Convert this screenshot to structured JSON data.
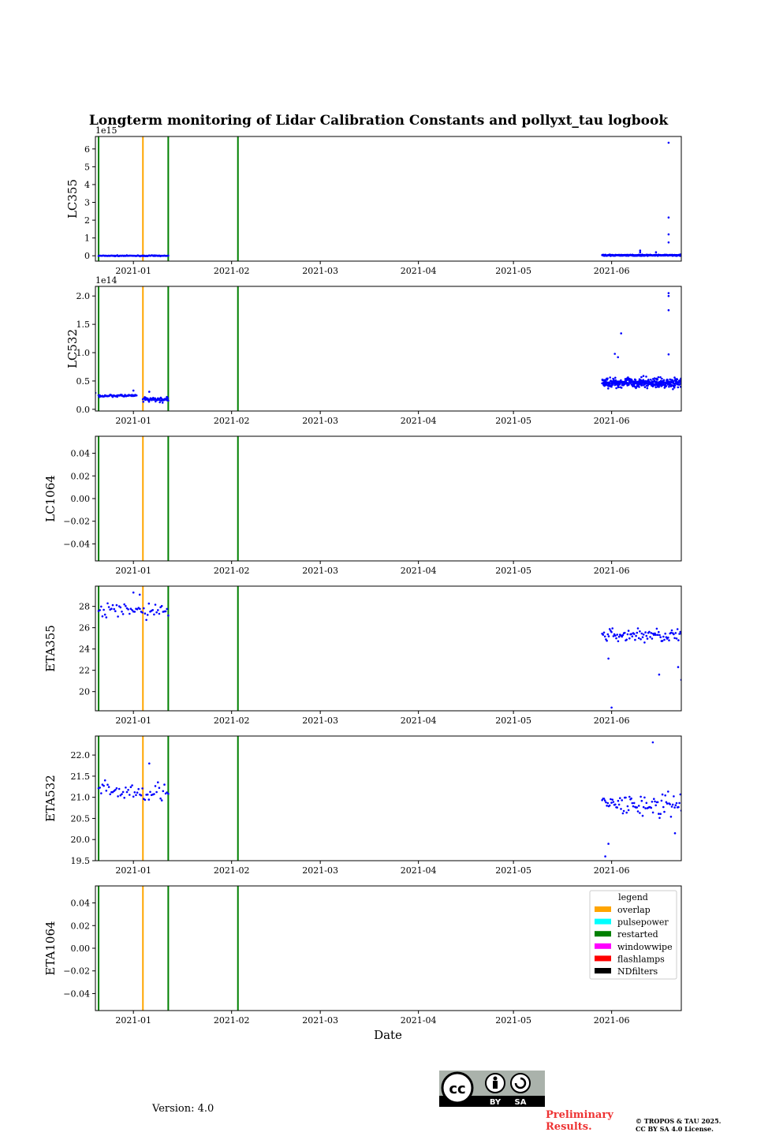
{
  "colors": {
    "data": "#0000ff",
    "overlap": "#ffa500",
    "pulsepower": "#00ffff",
    "restarted": "#008000",
    "windowwipe": "#ff00ff",
    "flashlamps": "#ff0000",
    "NDfilters": "#000000"
  },
  "chart_data": {
    "type": "scatter",
    "title": "Longterm monitoring of Lidar Calibration Constants and pollyxt_tau logbook",
    "xlabel": "Date",
    "xlim": [
      "2020-12-20",
      "2021-06-23"
    ],
    "xticks": [
      "2021-01",
      "2021-02",
      "2021-03",
      "2021-04",
      "2021-05",
      "2021-06"
    ],
    "events": [
      {
        "type": "restarted",
        "date": "2020-12-21"
      },
      {
        "type": "overlap",
        "date": "2021-01-04"
      },
      {
        "type": "restarted",
        "date": "2021-01-12"
      },
      {
        "type": "restarted",
        "date": "2021-02-03"
      }
    ],
    "legend": {
      "title": "legend",
      "position": "top-right",
      "entries": [
        "overlap",
        "pulsepower",
        "restarted",
        "windowwipe",
        "flashlamps",
        "NDfilters"
      ]
    },
    "panels": [
      {
        "ylabel": "LC355",
        "offset": "1e15",
        "ylim": [
          -0.3,
          6.7
        ],
        "yticks": [
          0,
          1,
          2,
          3,
          4,
          5,
          6
        ],
        "ytick_labels": [
          "0",
          "1",
          "2",
          "3",
          "4",
          "5",
          "6"
        ],
        "series": [
          {
            "name": "LC355 early",
            "start": "2020-12-21",
            "end": "2021-01-12",
            "n": 90,
            "base": 0.0,
            "noise": 0.02
          },
          {
            "name": "LC355 late",
            "start": "2021-05-29",
            "end": "2021-06-23",
            "n": 260,
            "base": 0.03,
            "noise": 0.03
          }
        ],
        "outliers": [
          [
            "2021-06-10",
            0.3
          ],
          [
            "2021-06-10",
            0.2
          ],
          [
            "2021-06-15",
            0.2
          ],
          [
            "2021-06-19",
            6.35
          ],
          [
            "2021-06-19",
            2.15
          ],
          [
            "2021-06-19",
            1.2
          ],
          [
            "2021-06-19",
            0.75
          ]
        ]
      },
      {
        "ylabel": "LC532",
        "offset": "1e14",
        "ylim": [
          -0.03,
          2.17
        ],
        "yticks": [
          0,
          0.5,
          1.0,
          1.5,
          2.0
        ],
        "ytick_labels": [
          "0.0",
          "0.5",
          "1.0",
          "1.5",
          "2.0"
        ],
        "series": [
          {
            "name": "LC532 early a",
            "start": "2020-12-21",
            "end": "2021-01-02",
            "n": 60,
            "base": 0.24,
            "noise": 0.02
          },
          {
            "name": "LC532 early b",
            "start": "2021-01-04",
            "end": "2021-01-12",
            "n": 55,
            "base": 0.17,
            "noise": 0.04
          },
          {
            "name": "LC532 late",
            "start": "2021-05-29",
            "end": "2021-06-23",
            "n": 380,
            "base": 0.47,
            "noise": 0.08
          }
        ],
        "outliers": [
          [
            "2020-12-20",
            0.29
          ],
          [
            "2021-01-01",
            0.33
          ],
          [
            "2021-01-06",
            0.31
          ],
          [
            "2021-06-04",
            1.34
          ],
          [
            "2021-06-02",
            0.98
          ],
          [
            "2021-06-03",
            0.92
          ],
          [
            "2021-06-19",
            2.05
          ],
          [
            "2021-06-19",
            2.0
          ],
          [
            "2021-06-19",
            1.75
          ],
          [
            "2021-06-19",
            0.97
          ]
        ]
      },
      {
        "ylabel": "LC1064",
        "ylim": [
          -0.055,
          0.055
        ],
        "yticks": [
          0.04,
          0.02,
          0.0,
          -0.02,
          -0.04
        ],
        "ytick_labels": [
          "0.04",
          "0.02",
          "0.00",
          "−0.02",
          "−0.04"
        ],
        "series": [],
        "outliers": []
      },
      {
        "ylabel": "ETA355",
        "ylim": [
          18.2,
          29.9
        ],
        "yticks": [
          20,
          22,
          24,
          26,
          28
        ],
        "ytick_labels": [
          "20",
          "22",
          "24",
          "26",
          "28"
        ],
        "series": [
          {
            "name": "ETA355 early",
            "start": "2020-12-21",
            "end": "2021-01-12",
            "n": 55,
            "base": 27.6,
            "noise": 0.7
          },
          {
            "name": "ETA355 late",
            "start": "2021-05-29",
            "end": "2021-06-23",
            "n": 85,
            "base": 25.3,
            "noise": 0.6
          }
        ],
        "outliers": [
          [
            "2021-01-01",
            29.3
          ],
          [
            "2021-01-03",
            29.1
          ],
          [
            "2021-06-01",
            18.5
          ],
          [
            "2021-06-16",
            21.6
          ],
          [
            "2021-06-22",
            22.3
          ],
          [
            "2021-06-23",
            21.1
          ],
          [
            "2021-05-31",
            23.1
          ]
        ]
      },
      {
        "ylabel": "ETA532",
        "ylim": [
          19.5,
          22.45
        ],
        "yticks": [
          19.5,
          20.0,
          20.5,
          21.0,
          21.5,
          22.0
        ],
        "ytick_labels": [
          "19.5",
          "20.0",
          "20.5",
          "21.0",
          "21.5",
          "22.0"
        ],
        "series": [
          {
            "name": "ETA532 early",
            "start": "2020-12-21",
            "end": "2021-01-12",
            "n": 55,
            "base": 21.15,
            "noise": 0.22
          },
          {
            "name": "ETA532 late",
            "start": "2021-05-29",
            "end": "2021-06-23",
            "n": 85,
            "base": 20.8,
            "noise": 0.28
          }
        ],
        "outliers": [
          [
            "2021-01-06",
            21.8
          ],
          [
            "2021-06-14",
            22.3
          ],
          [
            "2021-05-30",
            19.6
          ],
          [
            "2021-05-31",
            19.9
          ],
          [
            "2021-06-21",
            20.15
          ]
        ]
      },
      {
        "ylabel": "ETA1064",
        "ylim": [
          -0.055,
          0.055
        ],
        "yticks": [
          0.04,
          0.02,
          0.0,
          -0.02,
          -0.04
        ],
        "ytick_labels": [
          "0.04",
          "0.02",
          "0.00",
          "−0.02",
          "−0.04"
        ],
        "series": [],
        "outliers": []
      }
    ]
  },
  "footer": {
    "version": "Version: 4.0",
    "license_badge": {
      "cc": "cc",
      "by": "BY",
      "sa": "SA"
    },
    "preliminary": "Preliminary Results.",
    "copyright_line1": "© TROPOS & TAU 2025.",
    "copyright_line2": "CC BY SA 4.0 License."
  }
}
